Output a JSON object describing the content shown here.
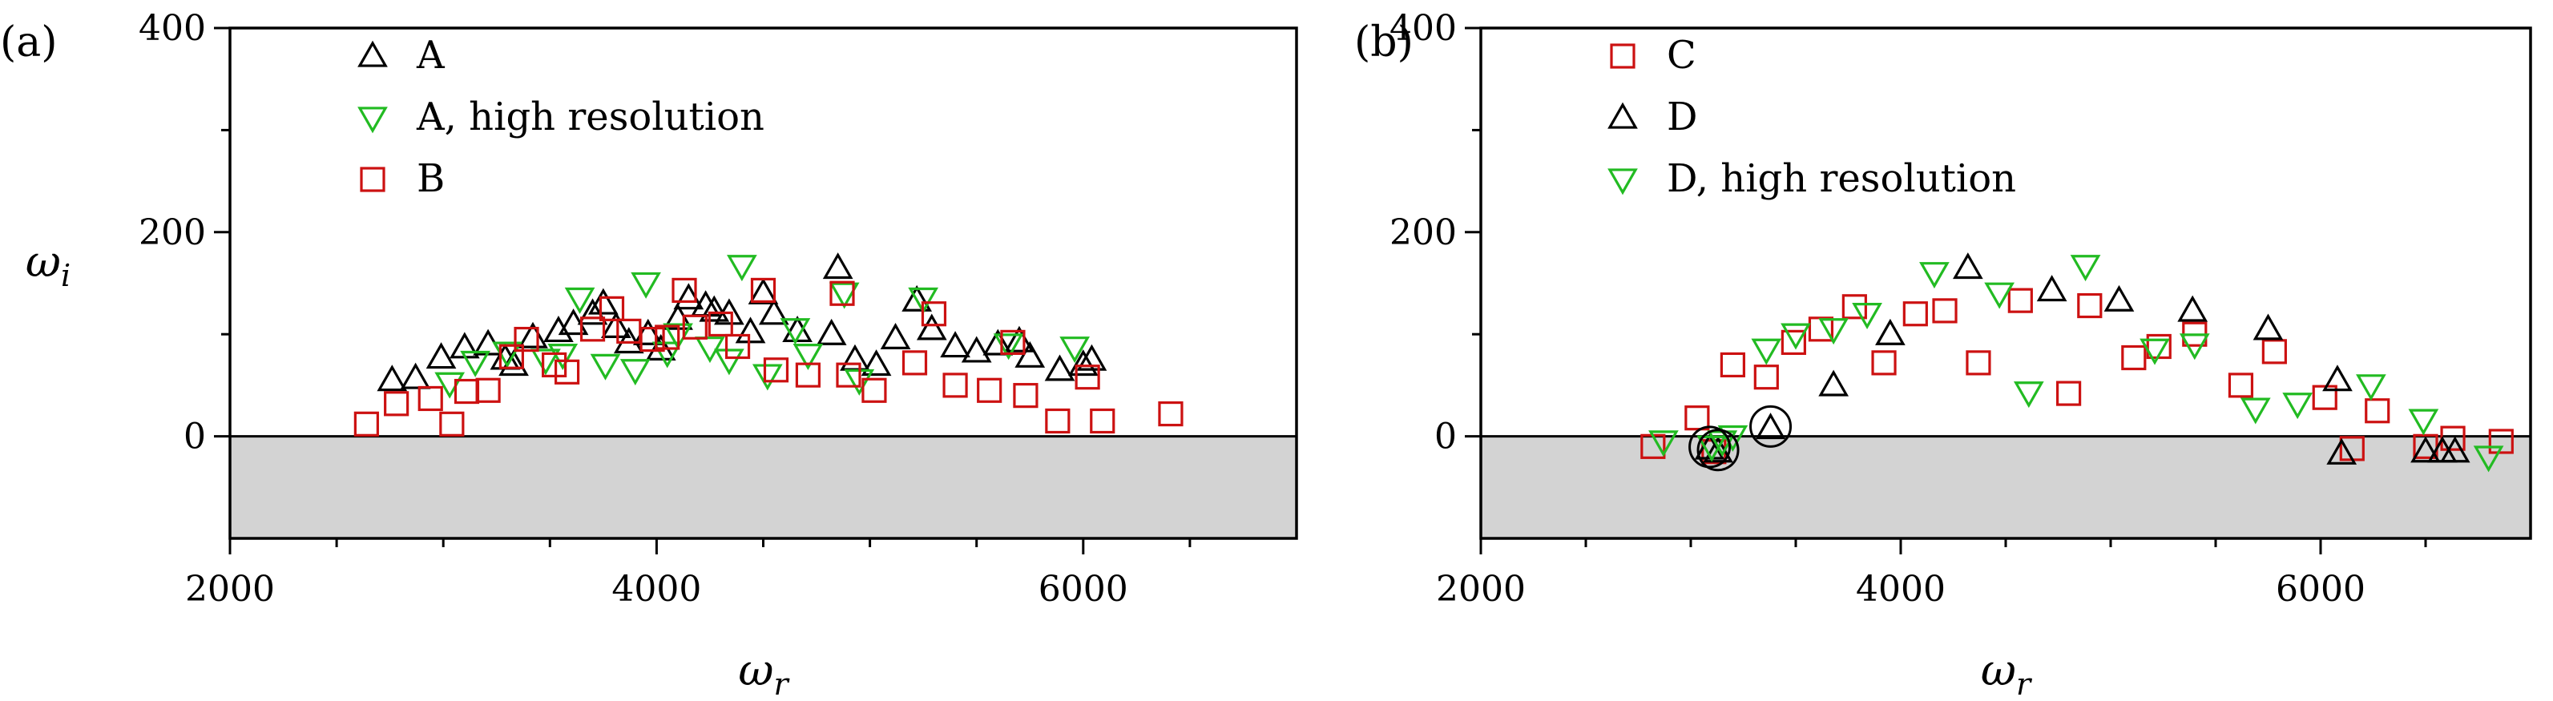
{
  "colors": {
    "A": "#000000",
    "B": "#cc1111",
    "C": "#cc1111",
    "D": "#000000",
    "hires": "#22bb22",
    "shade": "#d3d3d3"
  },
  "chart_data": [
    {
      "type": "scatter",
      "panel_label": "(a)",
      "xlabel": "ω",
      "xlabel_sub": "r",
      "ylabel": "ω",
      "ylabel_sub": "i",
      "xlim": [
        2000,
        7000
      ],
      "ylim": [
        -100,
        400
      ],
      "xticks": [
        2000,
        4000,
        6000
      ],
      "xticks_minor": [
        2500,
        3000,
        3500,
        4500,
        5000,
        5500,
        6500
      ],
      "yticks": [
        0,
        200,
        400
      ],
      "yticks_minor": [
        100,
        300
      ],
      "shaded_below_zero": true,
      "series": [
        {
          "name": "A",
          "marker": "triangle-up",
          "color": "#000000",
          "points": [
            [
              2760,
              55
            ],
            [
              2870,
              57
            ],
            [
              2990,
              77
            ],
            [
              3100,
              87
            ],
            [
              3210,
              90
            ],
            [
              3290,
              76
            ],
            [
              3330,
              70
            ],
            [
              3420,
              97
            ],
            [
              3540,
              103
            ],
            [
              3610,
              110
            ],
            [
              3700,
              120
            ],
            [
              3750,
              130
            ],
            [
              3810,
              107
            ],
            [
              3870,
              92
            ],
            [
              3960,
              100
            ],
            [
              4020,
              85
            ],
            [
              4100,
              115
            ],
            [
              4150,
              135
            ],
            [
              4230,
              128
            ],
            [
              4270,
              123
            ],
            [
              4340,
              120
            ],
            [
              4440,
              102
            ],
            [
              4500,
              140
            ],
            [
              4550,
              120
            ],
            [
              4660,
              103
            ],
            [
              4820,
              100
            ],
            [
              4850,
              165
            ],
            [
              4930,
              75
            ],
            [
              5030,
              70
            ],
            [
              5120,
              96
            ],
            [
              5220,
              133
            ],
            [
              5290,
              105
            ],
            [
              5400,
              88
            ],
            [
              5500,
              83
            ],
            [
              5600,
              90
            ],
            [
              5700,
              93
            ],
            [
              5750,
              78
            ],
            [
              5890,
              65
            ],
            [
              6000,
              70
            ],
            [
              6040,
              75
            ]
          ]
        },
        {
          "name": "A, high resolution",
          "marker": "triangle-down",
          "color": "#22bb22",
          "points": [
            [
              3030,
              52
            ],
            [
              3150,
              73
            ],
            [
              3300,
              82
            ],
            [
              3480,
              75
            ],
            [
              3560,
              80
            ],
            [
              3640,
              135
            ],
            [
              3760,
              70
            ],
            [
              3900,
              65
            ],
            [
              3950,
              150
            ],
            [
              4050,
              82
            ],
            [
              4100,
              100
            ],
            [
              4250,
              87
            ],
            [
              4340,
              75
            ],
            [
              4400,
              167
            ],
            [
              4520,
              60
            ],
            [
              4650,
              105
            ],
            [
              4710,
              80
            ],
            [
              4880,
              140
            ],
            [
              4950,
              55
            ],
            [
              5250,
              135
            ],
            [
              5650,
              90
            ],
            [
              5960,
              87
            ]
          ]
        },
        {
          "name": "B",
          "marker": "square",
          "color": "#cc1111",
          "points": [
            [
              2640,
              12
            ],
            [
              2780,
              32
            ],
            [
              2940,
              37
            ],
            [
              3040,
              12
            ],
            [
              3110,
              44
            ],
            [
              3210,
              45
            ],
            [
              3320,
              78
            ],
            [
              3390,
              95
            ],
            [
              3520,
              70
            ],
            [
              3580,
              63
            ],
            [
              3700,
              105
            ],
            [
              3790,
              125
            ],
            [
              3870,
              103
            ],
            [
              3980,
              95
            ],
            [
              4050,
              97
            ],
            [
              4130,
              143
            ],
            [
              4180,
              107
            ],
            [
              4300,
              110
            ],
            [
              4380,
              88
            ],
            [
              4500,
              143
            ],
            [
              4560,
              65
            ],
            [
              4710,
              60
            ],
            [
              4870,
              140
            ],
            [
              4900,
              60
            ],
            [
              5020,
              45
            ],
            [
              5210,
              72
            ],
            [
              5300,
              120
            ],
            [
              5400,
              50
            ],
            [
              5560,
              45
            ],
            [
              5670,
              92
            ],
            [
              5730,
              40
            ],
            [
              5880,
              15
            ],
            [
              6020,
              58
            ],
            [
              6090,
              15
            ],
            [
              6410,
              22
            ]
          ]
        }
      ]
    },
    {
      "type": "scatter",
      "panel_label": "(b)",
      "xlabel": "ω",
      "xlabel_sub": "r",
      "ylabel": "",
      "xlim": [
        2000,
        7000
      ],
      "ylim": [
        -100,
        400
      ],
      "xticks": [
        2000,
        4000,
        6000
      ],
      "xticks_minor": [
        2500,
        3000,
        3500,
        4500,
        5000,
        5500,
        6500
      ],
      "yticks": [
        0,
        200,
        400
      ],
      "yticks_minor": [
        100,
        300
      ],
      "shaded_below_zero": true,
      "circled_points": [
        [
          3090,
          -12
        ],
        [
          3130,
          -15
        ],
        [
          3380,
          8
        ]
      ],
      "series": [
        {
          "name": "C",
          "marker": "square",
          "color": "#cc1111",
          "points": [
            [
              2820,
              -10
            ],
            [
              3030,
              18
            ],
            [
              3110,
              -15
            ],
            [
              3200,
              70
            ],
            [
              3360,
              58
            ],
            [
              3490,
              92
            ],
            [
              3620,
              105
            ],
            [
              3780,
              127
            ],
            [
              3920,
              72
            ],
            [
              4070,
              120
            ],
            [
              4210,
              123
            ],
            [
              4370,
              72
            ],
            [
              4570,
              133
            ],
            [
              4800,
              42
            ],
            [
              4900,
              128
            ],
            [
              5110,
              77
            ],
            [
              5230,
              88
            ],
            [
              5400,
              100
            ],
            [
              5620,
              50
            ],
            [
              5780,
              83
            ],
            [
              6020,
              38
            ],
            [
              6150,
              -12
            ],
            [
              6270,
              25
            ],
            [
              6500,
              -10
            ],
            [
              6630,
              -2
            ],
            [
              6860,
              -5
            ]
          ]
        },
        {
          "name": "D",
          "marker": "triangle-up",
          "color": "#000000",
          "points": [
            [
              3090,
              -12
            ],
            [
              3130,
              -15
            ],
            [
              3380,
              8
            ],
            [
              3680,
              50
            ],
            [
              3950,
              100
            ],
            [
              4320,
              165
            ],
            [
              4720,
              143
            ],
            [
              5040,
              133
            ],
            [
              5390,
              123
            ],
            [
              5750,
              105
            ],
            [
              6080,
              55
            ],
            [
              6100,
              -17
            ],
            [
              6500,
              -15
            ],
            [
              6580,
              -15
            ],
            [
              6640,
              -15
            ]
          ]
        },
        {
          "name": "D, high resolution",
          "marker": "triangle-down",
          "color": "#22bb22",
          "points": [
            [
              2870,
              -5
            ],
            [
              3100,
              -10
            ],
            [
              3150,
              -5
            ],
            [
              3200,
              0
            ],
            [
              3360,
              85
            ],
            [
              3500,
              100
            ],
            [
              3680,
              105
            ],
            [
              3840,
              120
            ],
            [
              4160,
              160
            ],
            [
              4470,
              140
            ],
            [
              4610,
              43
            ],
            [
              4880,
              167
            ],
            [
              5210,
              85
            ],
            [
              5400,
              90
            ],
            [
              5690,
              27
            ],
            [
              5890,
              32
            ],
            [
              6240,
              50
            ],
            [
              6490,
              16
            ],
            [
              6800,
              -20
            ]
          ]
        }
      ]
    }
  ]
}
